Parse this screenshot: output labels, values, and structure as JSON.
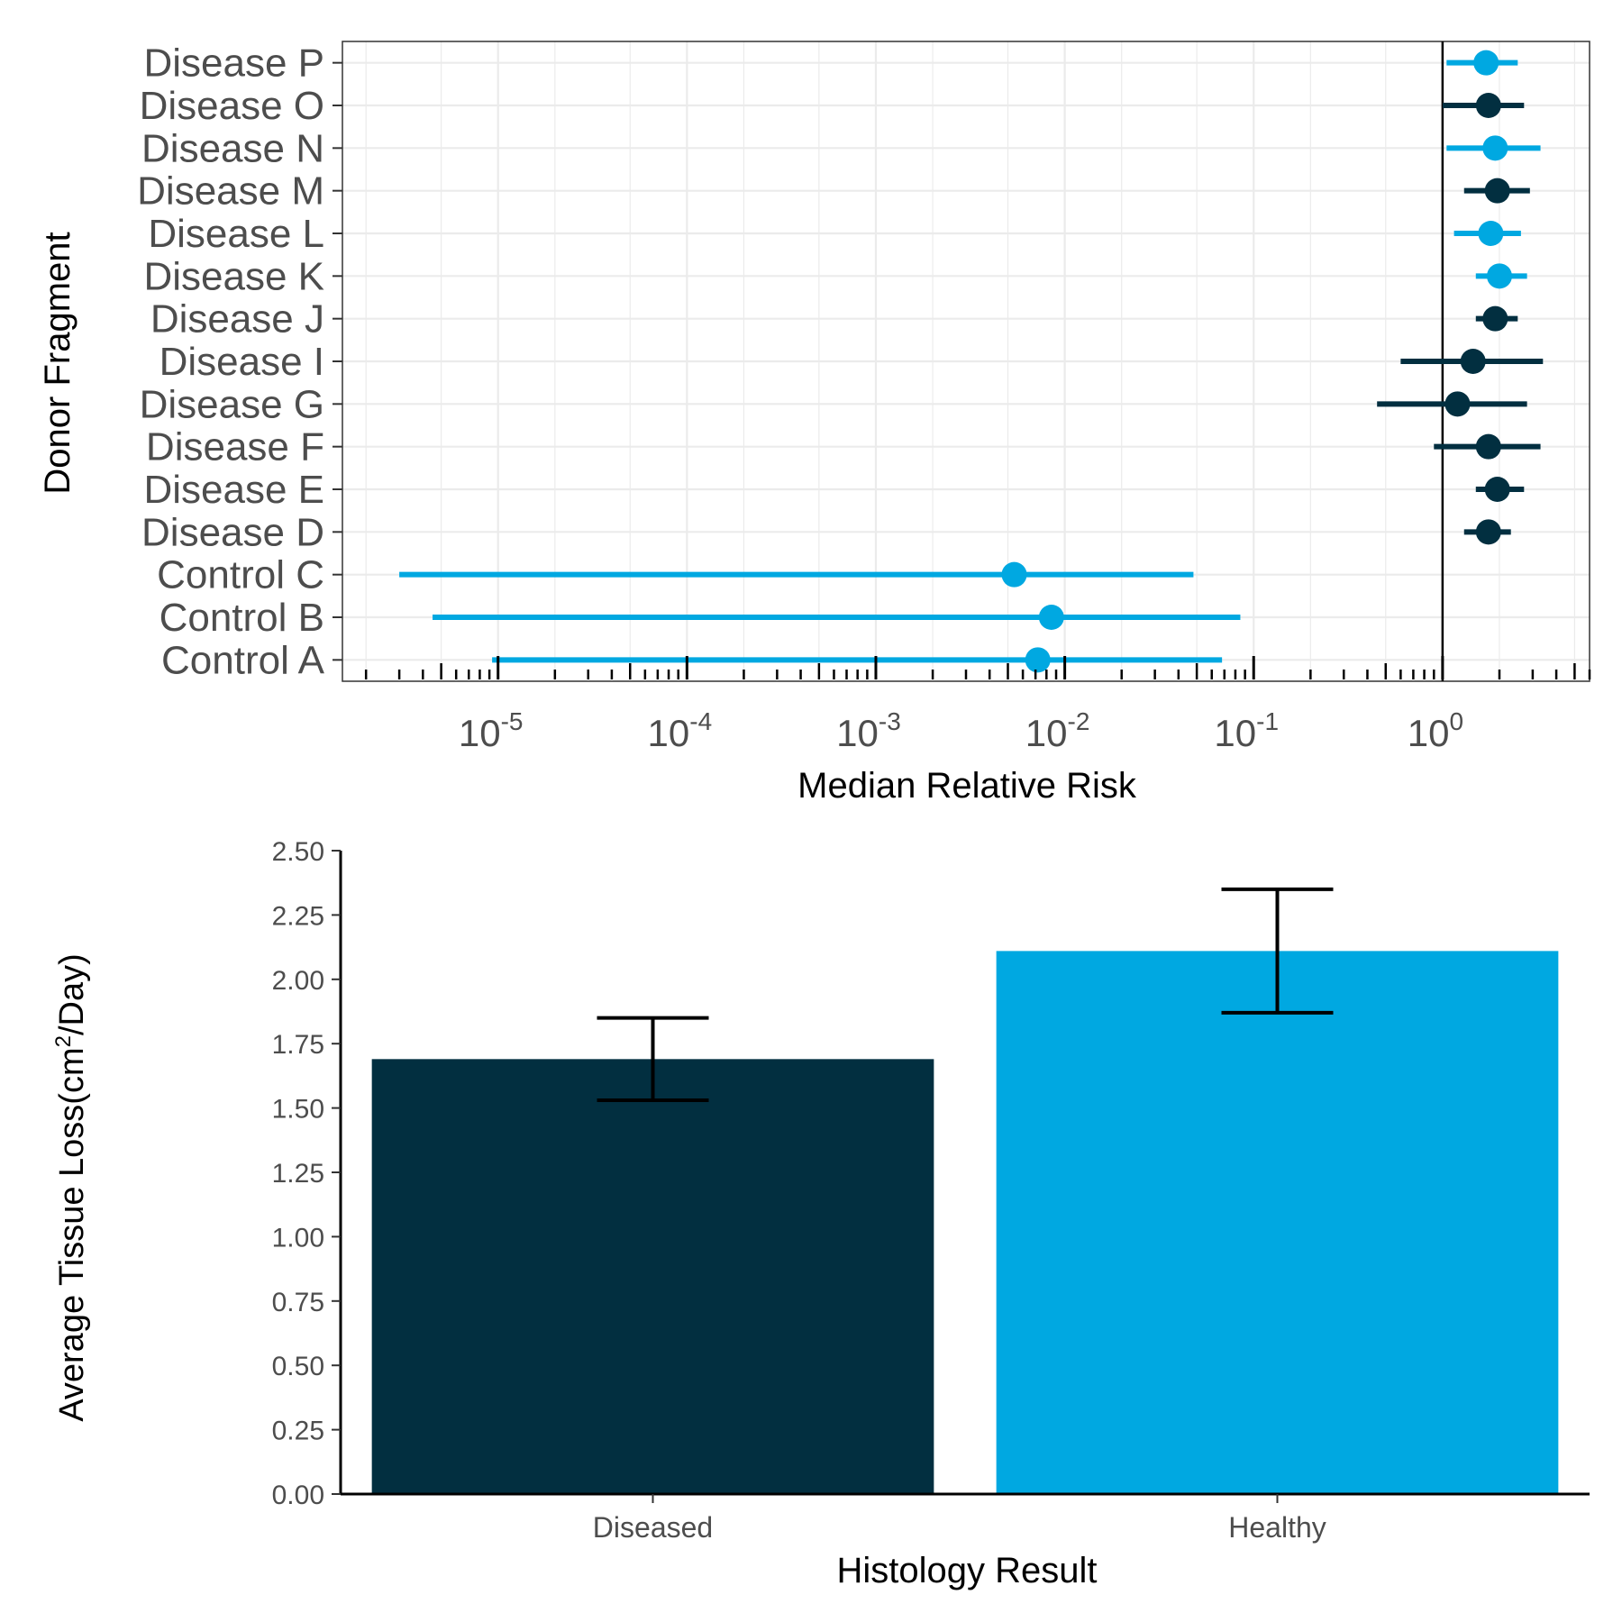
{
  "chart_data": [
    {
      "type": "scatter",
      "subtype": "forest-plot",
      "xlabel": "Median Relative Risk",
      "ylabel": "Donor Fragment",
      "x_scale": "log10",
      "xlim": [
        1.5e-06,
        6
      ],
      "x_tick_values": [
        1e-05,
        0.0001,
        0.001,
        0.01,
        0.1,
        1
      ],
      "x_ticks": [
        {
          "base": "10",
          "exp": "-5"
        },
        {
          "base": "10",
          "exp": "-4"
        },
        {
          "base": "10",
          "exp": "-3"
        },
        {
          "base": "10",
          "exp": "-2"
        },
        {
          "base": "10",
          "exp": "-1"
        },
        {
          "base": "10",
          "exp": "0"
        }
      ],
      "reference_line": 1,
      "grid": true,
      "colors": {
        "Disease": "#022f40",
        "Control": "#00a8e1"
      },
      "points": [
        {
          "label": "Control A",
          "x": 0.0072,
          "lo": 9.3e-06,
          "hi": 0.068,
          "color": "#00a8e1"
        },
        {
          "label": "Control B",
          "x": 0.0085,
          "lo": 4.5e-06,
          "hi": 0.085,
          "color": "#00a8e1"
        },
        {
          "label": "Control C",
          "x": 0.0054,
          "lo": 3e-06,
          "hi": 0.048,
          "color": "#00a8e1"
        },
        {
          "label": "Disease D",
          "x": 1.75,
          "lo": 1.3,
          "hi": 2.3,
          "color": "#022f40"
        },
        {
          "label": "Disease E",
          "x": 1.95,
          "lo": 1.5,
          "hi": 2.7,
          "color": "#022f40"
        },
        {
          "label": "Disease F",
          "x": 1.75,
          "lo": 0.9,
          "hi": 3.3,
          "color": "#022f40"
        },
        {
          "label": "Disease G",
          "x": 1.2,
          "lo": 0.45,
          "hi": 2.8,
          "color": "#022f40"
        },
        {
          "label": "Disease I",
          "x": 1.45,
          "lo": 0.6,
          "hi": 3.4,
          "color": "#022f40"
        },
        {
          "label": "Disease J",
          "x": 1.9,
          "lo": 1.5,
          "hi": 2.5,
          "color": "#022f40"
        },
        {
          "label": "Disease K",
          "x": 2.0,
          "lo": 1.5,
          "hi": 2.8,
          "color": "#00a8e1"
        },
        {
          "label": "Disease L",
          "x": 1.8,
          "lo": 1.15,
          "hi": 2.6,
          "color": "#00a8e1"
        },
        {
          "label": "Disease M",
          "x": 1.95,
          "lo": 1.3,
          "hi": 2.9,
          "color": "#022f40"
        },
        {
          "label": "Disease N",
          "x": 1.9,
          "lo": 1.05,
          "hi": 3.3,
          "color": "#00a8e1"
        },
        {
          "label": "Disease O",
          "x": 1.75,
          "lo": 1.0,
          "hi": 2.7,
          "color": "#022f40"
        },
        {
          "label": "Disease P",
          "x": 1.7,
          "lo": 1.05,
          "hi": 2.5,
          "color": "#00a8e1"
        }
      ]
    },
    {
      "type": "bar",
      "xlabel": "Histology Result",
      "ylabel_parts": [
        "Average Tissue Loss(cm",
        "2",
        "/Day)"
      ],
      "ylim": [
        0,
        2.5
      ],
      "y_ticks": [
        "0.00",
        "0.25",
        "0.50",
        "0.75",
        "1.00",
        "1.25",
        "1.50",
        "1.75",
        "2.00",
        "2.25",
        "2.50"
      ],
      "grid": false,
      "categories": [
        "Diseased",
        "Healthy"
      ],
      "values": [
        1.69,
        2.11
      ],
      "error_low": [
        1.53,
        1.87
      ],
      "error_high": [
        1.85,
        2.35
      ],
      "colors": [
        "#022f40",
        "#00a8e1"
      ]
    }
  ]
}
